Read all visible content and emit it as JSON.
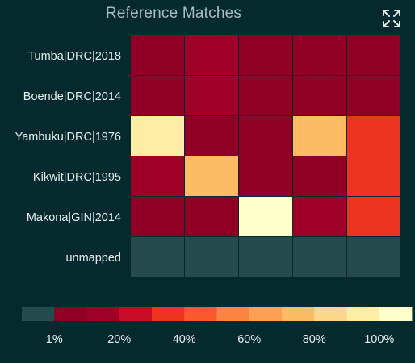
{
  "title": "Reference Matches",
  "expand_icon": "expand-arrows-icon",
  "chart_data": {
    "type": "heatmap",
    "rows": [
      "Tumba|DRC|2018",
      "Boende|DRC|2014",
      "Yambuku|DRC|1976",
      "Kikwit|DRC|1995",
      "Makona|GIN|2014",
      "unmapped"
    ],
    "columns": 5,
    "color_index": [
      [
        1,
        2,
        1,
        1,
        1
      ],
      [
        1,
        2,
        1,
        1,
        1
      ],
      [
        10,
        1,
        1,
        8,
        4
      ],
      [
        2,
        8,
        1,
        1,
        4
      ],
      [
        1,
        1,
        11,
        2,
        4
      ],
      [
        0,
        0,
        0,
        0,
        0
      ]
    ],
    "legend": {
      "colors": [
        "#274a4f",
        "#8f0024",
        "#9e0027",
        "#c70d26",
        "#ec3420",
        "#f8582c",
        "#fa843f",
        "#fca053",
        "#fdbc64",
        "#fdd88a",
        "#feeda3",
        "#ffffcc"
      ],
      "tick_labels": [
        "1%",
        "20%",
        "40%",
        "60%",
        "80%",
        "100%"
      ],
      "tick_positions": [
        1,
        3,
        5,
        7,
        9,
        11
      ]
    }
  }
}
